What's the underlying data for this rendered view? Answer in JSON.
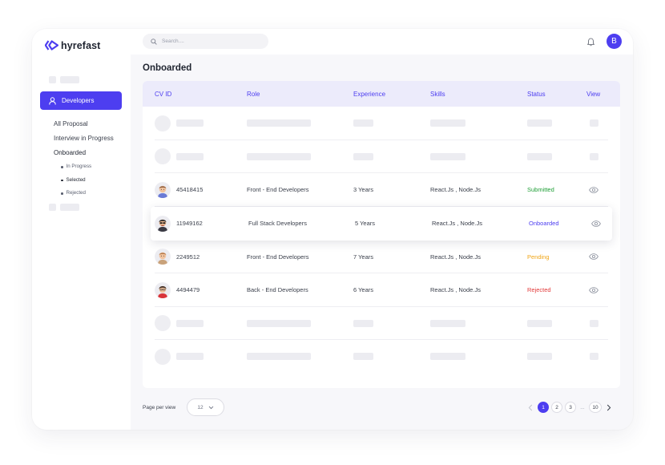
{
  "app": {
    "brand": "hyrefast"
  },
  "search": {
    "placeholder": "Search...."
  },
  "user": {
    "initial": "B"
  },
  "sidebar": {
    "active_item": "Developers",
    "subitems": [
      "All Proposal",
      "Interview in Progress",
      "Onboarded"
    ],
    "subsubitems": [
      "In Progress",
      "Selected",
      "Rejected"
    ]
  },
  "page": {
    "title": "Onboarded"
  },
  "table": {
    "headers": [
      "CV ID",
      "Role",
      "Experience",
      "Skills",
      "Status",
      "View"
    ],
    "rows": [
      {
        "id": "45418415",
        "role": "Front - End Developers",
        "experience": "3 Years",
        "skills": "React.Js , Node.Js",
        "status": "Submitted"
      },
      {
        "id": "11949162",
        "role": "Full Stack Developers",
        "experience": "5 Years",
        "skills": "React.Js , Node.Js",
        "status": "Onboarded"
      },
      {
        "id": "2249512",
        "role": "Front - End Developers",
        "experience": "7 Years",
        "skills": "React.Js , Node.Js",
        "status": "Pending"
      },
      {
        "id": "4494479",
        "role": "Back - End Developers",
        "experience": "6 Years",
        "skills": "React.Js , Node.Js",
        "status": "Rejected"
      }
    ]
  },
  "footer": {
    "page_per_view_label": "Page per view",
    "page_size": "12",
    "pages": [
      "1",
      "2",
      "3",
      "10"
    ],
    "ellipsis": "...",
    "current_page": "1"
  },
  "colors": {
    "accent": "#4d3ef0",
    "submitted": "#1e9e36",
    "onboarded": "#4d3ef0",
    "pending": "#f0a516",
    "rejected": "#e23b3b"
  },
  "icons": {
    "logo": "hyrefast-logo-icon",
    "search": "search-icon",
    "bell": "bell-icon",
    "user": "user-icon",
    "view": "eye-icon"
  }
}
